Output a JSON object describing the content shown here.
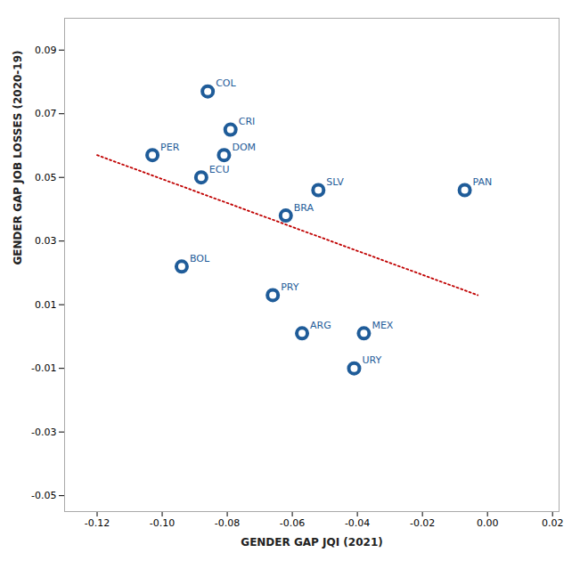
{
  "chart_data": {
    "type": "scatter",
    "xlabel": "GENDER GAP JQI (2021)",
    "ylabel": "GENDER GAP JOB LOSSES (2020-19)",
    "labels": [
      "COL",
      "PER",
      "ECU",
      "DOM",
      "CRI",
      "SLV",
      "BRA",
      "PAN",
      "BOL",
      "PRY",
      "ARG",
      "MEX",
      "URY"
    ],
    "x": [
      -0.086,
      -0.103,
      -0.088,
      -0.081,
      -0.079,
      -0.052,
      -0.062,
      -0.007,
      -0.094,
      -0.066,
      -0.057,
      -0.038,
      -0.041
    ],
    "values": [
      0.077,
      0.057,
      0.05,
      0.057,
      0.065,
      0.046,
      0.038,
      0.046,
      0.022,
      0.013,
      0.001,
      0.001,
      -0.01
    ],
    "color": "#1F5C99",
    "marker": "circle",
    "trendline": {
      "x": [
        -0.12,
        -0.003
      ],
      "values": [
        0.057,
        0.013
      ],
      "color": "#C00000",
      "line_style": "dotted"
    },
    "xlim": [
      -0.13,
      0.022
    ],
    "ylim": [
      -0.055,
      0.1
    ],
    "xticks": [
      -0.12,
      {
        "value": -0.1,
        "label": "-0.10"
      },
      -0.08,
      -0.06,
      -0.04,
      -0.02,
      {
        "value": 0,
        "label": "0.00"
      },
      0.02
    ],
    "yticks": [
      -0.05,
      -0.03,
      -0.01,
      0.01,
      0.03,
      0.05,
      0.07,
      0.09
    ]
  }
}
